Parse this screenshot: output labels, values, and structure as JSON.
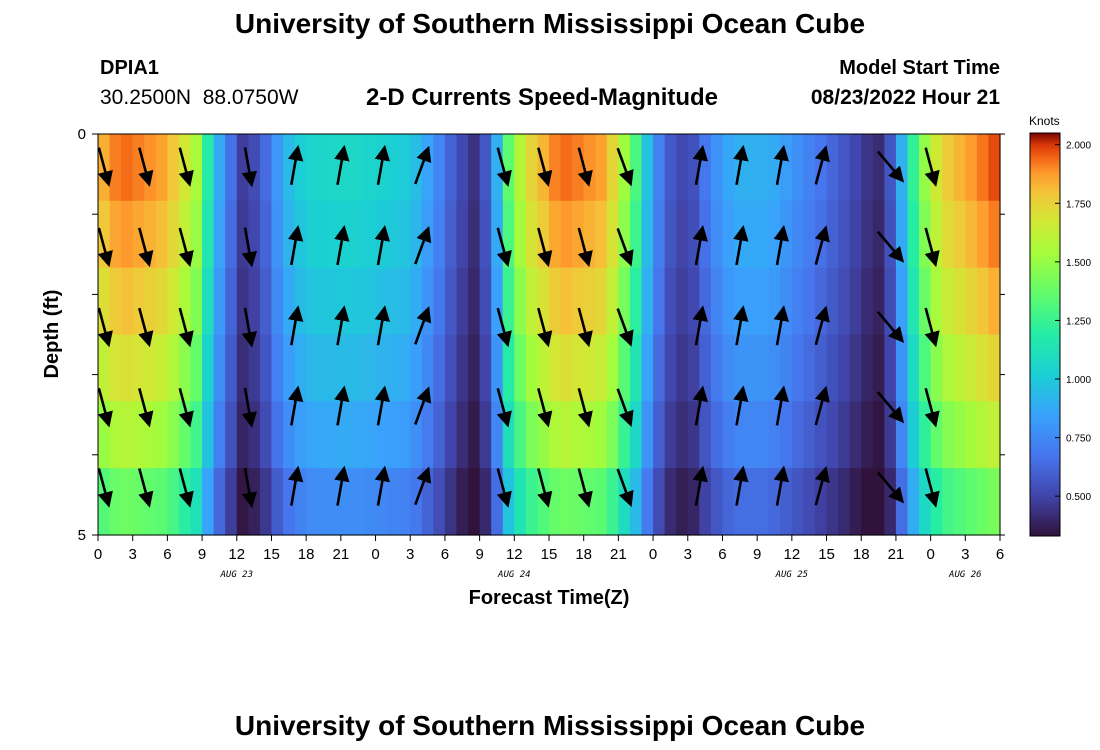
{
  "header": {
    "title": "University of Southern Mississippi Ocean Cube",
    "station_id": "DPIA1",
    "coordinates": "30.2500N  88.0750W",
    "model_start_label": "Model Start Time",
    "model_start_value": "08/23/2022 Hour 21"
  },
  "footer": {
    "title": "University of Southern Mississippi Ocean Cube"
  },
  "colors": {
    "arrow": "#000000",
    "frame": "#000000"
  },
  "chart_data": {
    "type": "heatmap",
    "title": "2-D Currents Speed-Magnitude",
    "xlabel": "Forecast Time(Z)",
    "ylabel": "Depth (ft)",
    "x_start_hour": 0,
    "x_end_hour": 78,
    "ylim": [
      0,
      5
    ],
    "y_ticks": [
      "0",
      "5"
    ],
    "x_tick_hours": [
      0,
      3,
      6,
      9,
      12,
      15,
      18,
      21,
      24,
      27,
      30,
      33,
      36,
      39,
      42,
      45,
      48,
      51,
      54,
      57,
      60,
      63,
      66,
      69,
      72,
      75,
      78
    ],
    "x_tick_labels": [
      "0",
      "3",
      "6",
      "9",
      "12",
      "15",
      "18",
      "21",
      "0",
      "3",
      "6",
      "9",
      "12",
      "15",
      "18",
      "21",
      "0",
      "3",
      "6",
      "9",
      "12",
      "15",
      "18",
      "21",
      "0",
      "3",
      "6"
    ],
    "date_labels": [
      {
        "hour": 12,
        "text": "AUG 23"
      },
      {
        "hour": 36,
        "text": "AUG 24"
      },
      {
        "hour": 60,
        "text": "AUG 25"
      },
      {
        "hour": 75,
        "text": "AUG 26"
      }
    ],
    "colorbar": {
      "unit": "Knots",
      "min": 0.33,
      "max": 2.05,
      "ticks": [
        "0.500",
        "0.750",
        "1.000",
        "1.250",
        "1.500",
        "1.750",
        "2.000"
      ]
    },
    "speed_keyframes": [
      {
        "hour": 0,
        "value": 1.8
      },
      {
        "hour": 2,
        "value": 1.95
      },
      {
        "hour": 6,
        "value": 1.85
      },
      {
        "hour": 8.5,
        "value": 1.55
      },
      {
        "hour": 10,
        "value": 1.0
      },
      {
        "hour": 11,
        "value": 0.75
      },
      {
        "hour": 12.5,
        "value": 0.48
      },
      {
        "hour": 14,
        "value": 0.55
      },
      {
        "hour": 16,
        "value": 0.9
      },
      {
        "hour": 18,
        "value": 1.05
      },
      {
        "hour": 22,
        "value": 1.07
      },
      {
        "hour": 27,
        "value": 1.0
      },
      {
        "hour": 29,
        "value": 0.8
      },
      {
        "hour": 31,
        "value": 0.55
      },
      {
        "hour": 33,
        "value": 0.4
      },
      {
        "hour": 34.5,
        "value": 0.9
      },
      {
        "hour": 35.5,
        "value": 1.35
      },
      {
        "hour": 37,
        "value": 1.7
      },
      {
        "hour": 40,
        "value": 1.95
      },
      {
        "hour": 44,
        "value": 1.85
      },
      {
        "hour": 46.5,
        "value": 1.3
      },
      {
        "hour": 48,
        "value": 0.8
      },
      {
        "hour": 50,
        "value": 0.5
      },
      {
        "hour": 51.5,
        "value": 0.55
      },
      {
        "hour": 53,
        "value": 0.75
      },
      {
        "hour": 55,
        "value": 0.9
      },
      {
        "hour": 58,
        "value": 0.9
      },
      {
        "hour": 61,
        "value": 0.75
      },
      {
        "hour": 64,
        "value": 0.6
      },
      {
        "hour": 66.5,
        "value": 0.45
      },
      {
        "hour": 68,
        "value": 0.4
      },
      {
        "hour": 69.5,
        "value": 0.9
      },
      {
        "hour": 71,
        "value": 1.4
      },
      {
        "hour": 73,
        "value": 1.75
      },
      {
        "hour": 78,
        "value": 2.0
      }
    ],
    "depth_factors": [
      1.0,
      0.97,
      0.93,
      0.88,
      0.82,
      0.72
    ],
    "vector_hours": [
      0.5,
      4,
      7.5,
      13,
      17,
      21,
      24.5,
      28,
      35,
      38.5,
      42,
      45.5,
      52,
      55.5,
      59,
      62.5,
      68.5,
      72
    ],
    "vector_directions_deg": [
      165,
      165,
      165,
      170,
      10,
      10,
      10,
      20,
      165,
      165,
      165,
      160,
      10,
      10,
      10,
      15,
      140,
      165
    ],
    "vector_depths": [
      0.4,
      1.4,
      2.4,
      3.4,
      4.4
    ]
  }
}
